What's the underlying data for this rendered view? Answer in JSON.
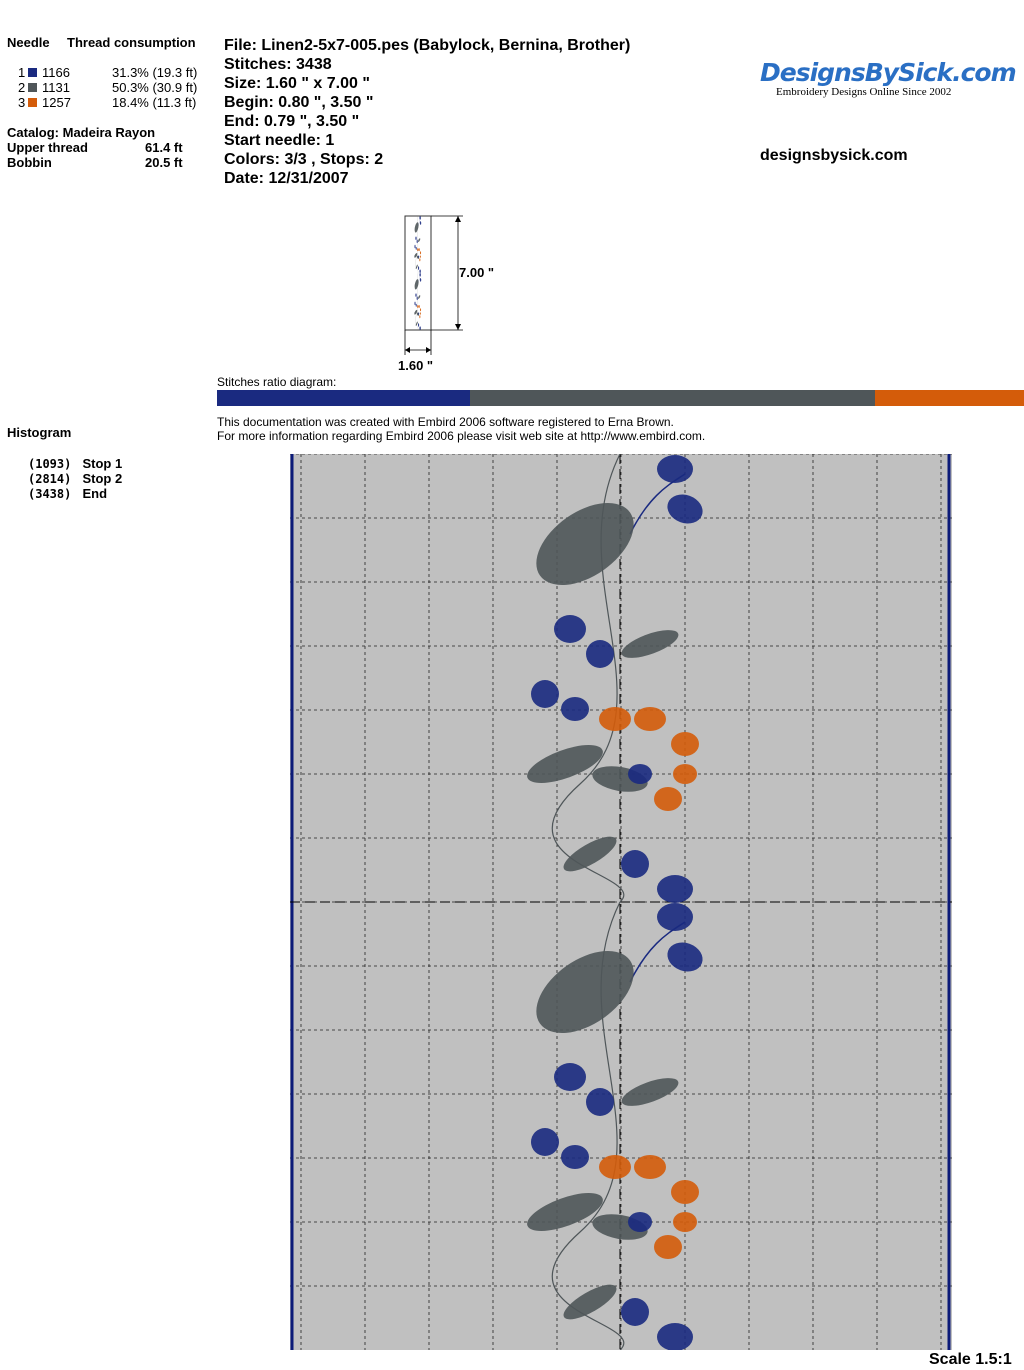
{
  "header": {
    "needle_label": "Needle",
    "thread_label": "Thread consumption"
  },
  "threads": [
    {
      "needle": "1",
      "code": "1166",
      "consumption": "31.3% (19.3 ft)",
      "color": "#1a2a80",
      "percent": 31.3
    },
    {
      "needle": "2",
      "code": "1131",
      "consumption": "50.3% (30.9 ft)",
      "color": "#4f5659",
      "percent": 50.3
    },
    {
      "needle": "3",
      "code": "1257",
      "consumption": "18.4% (11.3 ft)",
      "color": "#d45c0a",
      "percent": 18.4
    }
  ],
  "catalog": {
    "catalog_line": "Catalog: Madeira Rayon",
    "upper_label": "Upper thread",
    "upper_value": "61.4 ft",
    "bobbin_label": "Bobbin",
    "bobbin_value": "20.5 ft"
  },
  "file_info": {
    "file": "File: Linen2-5x7-005.pes  (Babylock, Bernina, Brother)",
    "stitches": "Stitches: 3438",
    "size": "Size: 1.60 \" x 7.00 \"",
    "begin": "Begin: 0.80 \", 3.50 \"",
    "end": "End: 0.79 \", 3.50 \"",
    "start_needle": "Start needle: 1",
    "colors_stops": "Colors: 3/3 , Stops: 2",
    "date": "Date: 12/31/2007"
  },
  "brand": {
    "logo_text": "DesignsBySick.com",
    "tagline": "Embroidery Designs Online Since 2002",
    "url": "designsbysick.com"
  },
  "thumbnail": {
    "height_label": "7.00 \"",
    "width_label": "1.60 \""
  },
  "ratio": {
    "label": "Stitches ratio diagram:"
  },
  "notice": {
    "line1": "This documentation was created with Embird 2006 software registered to Erna Brown.",
    "line2": "For more information regarding Embird 2006 please visit web site at http://www.embird.com."
  },
  "histogram": {
    "title": "Histogram",
    "entries": [
      {
        "count": "(1093)",
        "label": "Stop 1"
      },
      {
        "count": "(2814)",
        "label": "Stop 2"
      },
      {
        "count": "(3438)",
        "label": "End"
      }
    ]
  },
  "footer": {
    "scale": "Scale 1.5:1"
  }
}
